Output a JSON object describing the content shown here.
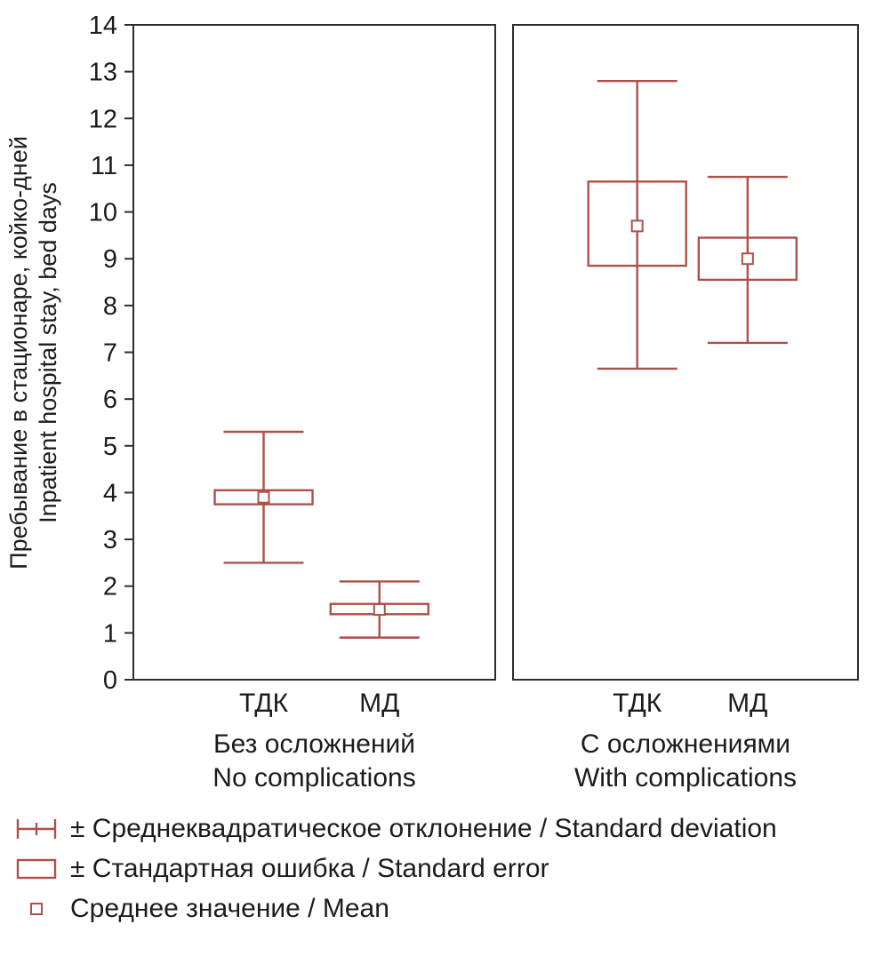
{
  "chart_data": {
    "type": "boxplot",
    "title": "",
    "ylabel_ru": "Пребывание в стационаре, койко-дней",
    "ylabel_en": "Inpatient hospital stay, bed days",
    "ylim": [
      0,
      14
    ],
    "yticks": [
      0,
      1,
      2,
      3,
      4,
      5,
      6,
      7,
      8,
      9,
      10,
      11,
      12,
      13,
      14
    ],
    "accent_color": "#ae5049",
    "axis_color": "#2e2e2e",
    "legend_position": "bottom-left",
    "grid": false,
    "panels": [
      {
        "label_ru": "Без осложнений",
        "label_en": "No complications",
        "groups": [
          {
            "label": "ТДК",
            "mean": 3.9,
            "se_low": 3.75,
            "se_high": 4.05,
            "sd_low": 2.5,
            "sd_high": 5.3
          },
          {
            "label": "МД",
            "mean": 1.5,
            "se_low": 1.4,
            "se_high": 1.62,
            "sd_low": 0.9,
            "sd_high": 2.1
          }
        ]
      },
      {
        "label_ru": "С осложнениями",
        "label_en": "With complications",
        "groups": [
          {
            "label": "ТДК",
            "mean": 9.7,
            "se_low": 8.85,
            "se_high": 10.65,
            "sd_low": 6.65,
            "sd_high": 12.8
          },
          {
            "label": "МД",
            "mean": 9.0,
            "se_low": 8.55,
            "se_high": 9.45,
            "sd_low": 7.2,
            "sd_high": 10.75
          }
        ]
      }
    ],
    "legend": [
      {
        "icon": "sd-whisker-icon",
        "label": "± Среднеквадратическое отклонение / Standard deviation"
      },
      {
        "icon": "se-box-icon",
        "label": "± Стандартная ошибка / Standard error"
      },
      {
        "icon": "mean-marker-icon",
        "label": "Среднее значение / Mean"
      }
    ]
  }
}
